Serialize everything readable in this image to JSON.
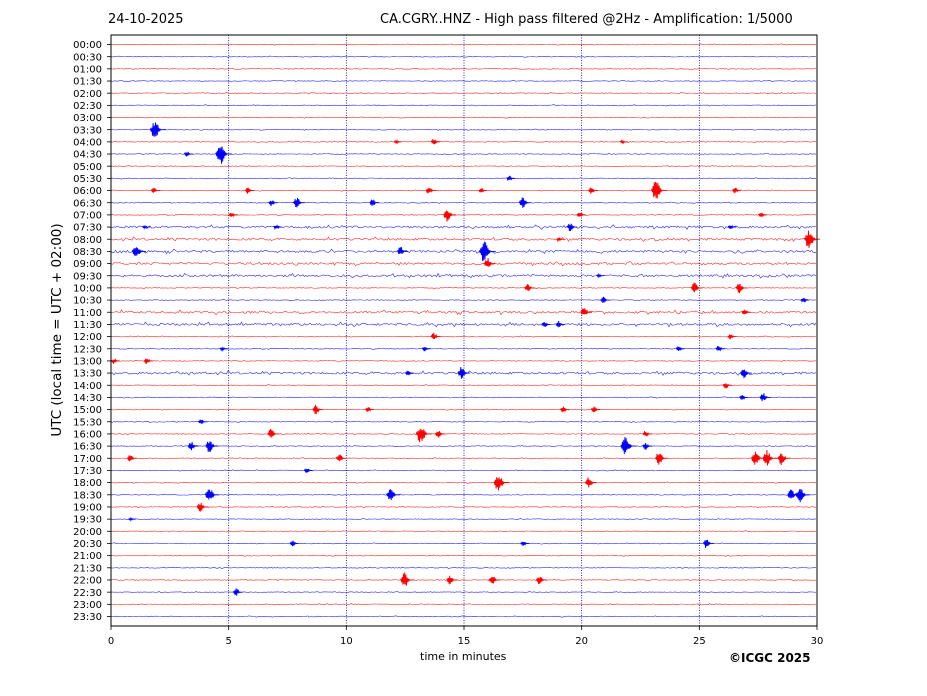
{
  "header": {
    "date": "24-10-2025",
    "title": "CA.CGRY..HNZ - High pass filtered @2Hz - Amplification: 1/5000"
  },
  "footer": {
    "copyright": "©ICGC 2025"
  },
  "chart_data": {
    "type": "line",
    "title": "CA.CGRY..HNZ - High pass filtered @2Hz - Amplification: 1/5000",
    "xlabel": "time in minutes",
    "ylabel": "UTC (local time = UTC + 02:00)",
    "xlim": [
      0,
      30
    ],
    "x_ticks": [
      "0",
      "5",
      "10",
      "15",
      "20",
      "25",
      "30"
    ],
    "grid": "vertical dotted lines at x = 5, 10, 15, 20, 25",
    "rows": [
      "00:00",
      "00:30",
      "01:00",
      "01:30",
      "02:00",
      "02:30",
      "03:00",
      "03:30",
      "04:00",
      "04:30",
      "05:00",
      "05:30",
      "06:00",
      "06:30",
      "07:00",
      "07:30",
      "08:00",
      "08:30",
      "09:00",
      "09:30",
      "10:00",
      "10:30",
      "11:00",
      "11:30",
      "12:00",
      "12:30",
      "13:00",
      "13:30",
      "14:00",
      "14:30",
      "15:00",
      "15:30",
      "16:00",
      "16:30",
      "17:00",
      "17:30",
      "18:00",
      "18:30",
      "19:00",
      "19:30",
      "20:00",
      "20:30",
      "21:00",
      "21:30",
      "22:00",
      "22:30",
      "23:00",
      "23:30"
    ],
    "colors": {
      "even_rows": "#ff0000",
      "odd_rows": "#0000ff"
    },
    "events": [
      {
        "row": "03:30",
        "x": 2.0,
        "amp": 1.0
      },
      {
        "row": "04:00",
        "x": 12.2,
        "amp": 0.2
      },
      {
        "row": "04:00",
        "x": 13.8,
        "amp": 0.35
      },
      {
        "row": "04:00",
        "x": 21.8,
        "amp": 0.2
      },
      {
        "row": "04:30",
        "x": 3.3,
        "amp": 0.3
      },
      {
        "row": "04:30",
        "x": 4.8,
        "amp": 1.1
      },
      {
        "row": "05:30",
        "x": 17.0,
        "amp": 0.3
      },
      {
        "row": "06:00",
        "x": 1.9,
        "amp": 0.3
      },
      {
        "row": "06:00",
        "x": 5.9,
        "amp": 0.35
      },
      {
        "row": "06:00",
        "x": 13.6,
        "amp": 0.45
      },
      {
        "row": "06:00",
        "x": 15.8,
        "amp": 0.25
      },
      {
        "row": "06:00",
        "x": 20.5,
        "amp": 0.4
      },
      {
        "row": "06:00",
        "x": 23.3,
        "amp": 1.0
      },
      {
        "row": "06:00",
        "x": 26.6,
        "amp": 0.3
      },
      {
        "row": "06:30",
        "x": 6.9,
        "amp": 0.35
      },
      {
        "row": "06:30",
        "x": 8.0,
        "amp": 0.6
      },
      {
        "row": "06:30",
        "x": 11.2,
        "amp": 0.4
      },
      {
        "row": "06:30",
        "x": 17.6,
        "amp": 0.6
      },
      {
        "row": "07:00",
        "x": 5.2,
        "amp": 0.3
      },
      {
        "row": "07:00",
        "x": 14.4,
        "amp": 0.7
      },
      {
        "row": "07:00",
        "x": 20.0,
        "amp": 0.35
      },
      {
        "row": "07:00",
        "x": 27.7,
        "amp": 0.3
      },
      {
        "row": "07:30",
        "x": 1.5,
        "amp": 0.2
      },
      {
        "row": "07:30",
        "x": 7.1,
        "amp": 0.3
      },
      {
        "row": "07:30",
        "x": 19.6,
        "amp": 0.45
      },
      {
        "row": "07:30",
        "x": 26.4,
        "amp": 0.25
      },
      {
        "row": "08:00",
        "x": 19.1,
        "amp": 0.2
      },
      {
        "row": "08:00",
        "x": 29.8,
        "amp": 1.0
      },
      {
        "row": "08:30",
        "x": 1.2,
        "amp": 0.8
      },
      {
        "row": "08:30",
        "x": 12.4,
        "amp": 0.5
      },
      {
        "row": "08:30",
        "x": 16.0,
        "amp": 1.1
      },
      {
        "row": "09:00",
        "x": 16.1,
        "amp": 0.6
      },
      {
        "row": "09:30",
        "x": 20.8,
        "amp": 0.2
      },
      {
        "row": "10:00",
        "x": 17.8,
        "amp": 0.5
      },
      {
        "row": "10:00",
        "x": 24.9,
        "amp": 0.6
      },
      {
        "row": "10:00",
        "x": 26.8,
        "amp": 0.55
      },
      {
        "row": "10:30",
        "x": 21.0,
        "amp": 0.35
      },
      {
        "row": "10:30",
        "x": 29.5,
        "amp": 0.3
      },
      {
        "row": "11:00",
        "x": 20.2,
        "amp": 0.55
      },
      {
        "row": "11:00",
        "x": 27.0,
        "amp": 0.35
      },
      {
        "row": "11:30",
        "x": 18.5,
        "amp": 0.35
      },
      {
        "row": "11:30",
        "x": 19.1,
        "amp": 0.35
      },
      {
        "row": "12:00",
        "x": 13.8,
        "amp": 0.4
      },
      {
        "row": "12:00",
        "x": 26.4,
        "amp": 0.3
      },
      {
        "row": "12:30",
        "x": 4.8,
        "amp": 0.2
      },
      {
        "row": "12:30",
        "x": 13.4,
        "amp": 0.25
      },
      {
        "row": "12:30",
        "x": 24.2,
        "amp": 0.3
      },
      {
        "row": "12:30",
        "x": 25.9,
        "amp": 0.35
      },
      {
        "row": "13:00",
        "x": 0.2,
        "amp": 0.3
      },
      {
        "row": "13:00",
        "x": 1.6,
        "amp": 0.35
      },
      {
        "row": "13:30",
        "x": 12.7,
        "amp": 0.3
      },
      {
        "row": "13:30",
        "x": 15.0,
        "amp": 0.65
      },
      {
        "row": "13:30",
        "x": 27.0,
        "amp": 0.6
      },
      {
        "row": "14:00",
        "x": 26.2,
        "amp": 0.35
      },
      {
        "row": "14:30",
        "x": 26.9,
        "amp": 0.3
      },
      {
        "row": "14:30",
        "x": 27.8,
        "amp": 0.5
      },
      {
        "row": "15:00",
        "x": 8.8,
        "amp": 0.5
      },
      {
        "row": "15:00",
        "x": 11.0,
        "amp": 0.3
      },
      {
        "row": "15:00",
        "x": 19.3,
        "amp": 0.35
      },
      {
        "row": "15:00",
        "x": 20.6,
        "amp": 0.35
      },
      {
        "row": "15:30",
        "x": 3.9,
        "amp": 0.3
      },
      {
        "row": "16:00",
        "x": 6.9,
        "amp": 0.55
      },
      {
        "row": "16:00",
        "x": 13.3,
        "amp": 1.0
      },
      {
        "row": "16:00",
        "x": 14.0,
        "amp": 0.45
      },
      {
        "row": "16:00",
        "x": 22.8,
        "amp": 0.35
      },
      {
        "row": "16:30",
        "x": 3.5,
        "amp": 0.5
      },
      {
        "row": "16:30",
        "x": 4.3,
        "amp": 0.7
      },
      {
        "row": "16:30",
        "x": 22.0,
        "amp": 1.0
      },
      {
        "row": "16:30",
        "x": 22.8,
        "amp": 0.4
      },
      {
        "row": "17:00",
        "x": 0.9,
        "amp": 0.4
      },
      {
        "row": "17:00",
        "x": 9.8,
        "amp": 0.5
      },
      {
        "row": "17:00",
        "x": 23.4,
        "amp": 0.7
      },
      {
        "row": "17:00",
        "x": 27.5,
        "amp": 0.8
      },
      {
        "row": "17:00",
        "x": 28.0,
        "amp": 0.85
      },
      {
        "row": "17:00",
        "x": 28.6,
        "amp": 0.7
      },
      {
        "row": "17:30",
        "x": 8.4,
        "amp": 0.3
      },
      {
        "row": "18:00",
        "x": 16.6,
        "amp": 1.0
      },
      {
        "row": "18:00",
        "x": 20.4,
        "amp": 0.6
      },
      {
        "row": "18:30",
        "x": 4.3,
        "amp": 0.8
      },
      {
        "row": "18:30",
        "x": 12.0,
        "amp": 0.8
      },
      {
        "row": "18:30",
        "x": 29.0,
        "amp": 0.6
      },
      {
        "row": "18:30",
        "x": 29.4,
        "amp": 0.9
      },
      {
        "row": "19:00",
        "x": 3.9,
        "amp": 0.55
      },
      {
        "row": "19:30",
        "x": 0.9,
        "amp": 0.15
      },
      {
        "row": "20:30",
        "x": 7.8,
        "amp": 0.3
      },
      {
        "row": "20:30",
        "x": 17.6,
        "amp": 0.3
      },
      {
        "row": "20:30",
        "x": 25.4,
        "amp": 0.5
      },
      {
        "row": "22:00",
        "x": 12.6,
        "amp": 0.8
      },
      {
        "row": "22:00",
        "x": 14.5,
        "amp": 0.5
      },
      {
        "row": "22:00",
        "x": 16.3,
        "amp": 0.55
      },
      {
        "row": "22:00",
        "x": 18.3,
        "amp": 0.5
      },
      {
        "row": "22:30",
        "x": 5.4,
        "amp": 0.4
      }
    ]
  }
}
